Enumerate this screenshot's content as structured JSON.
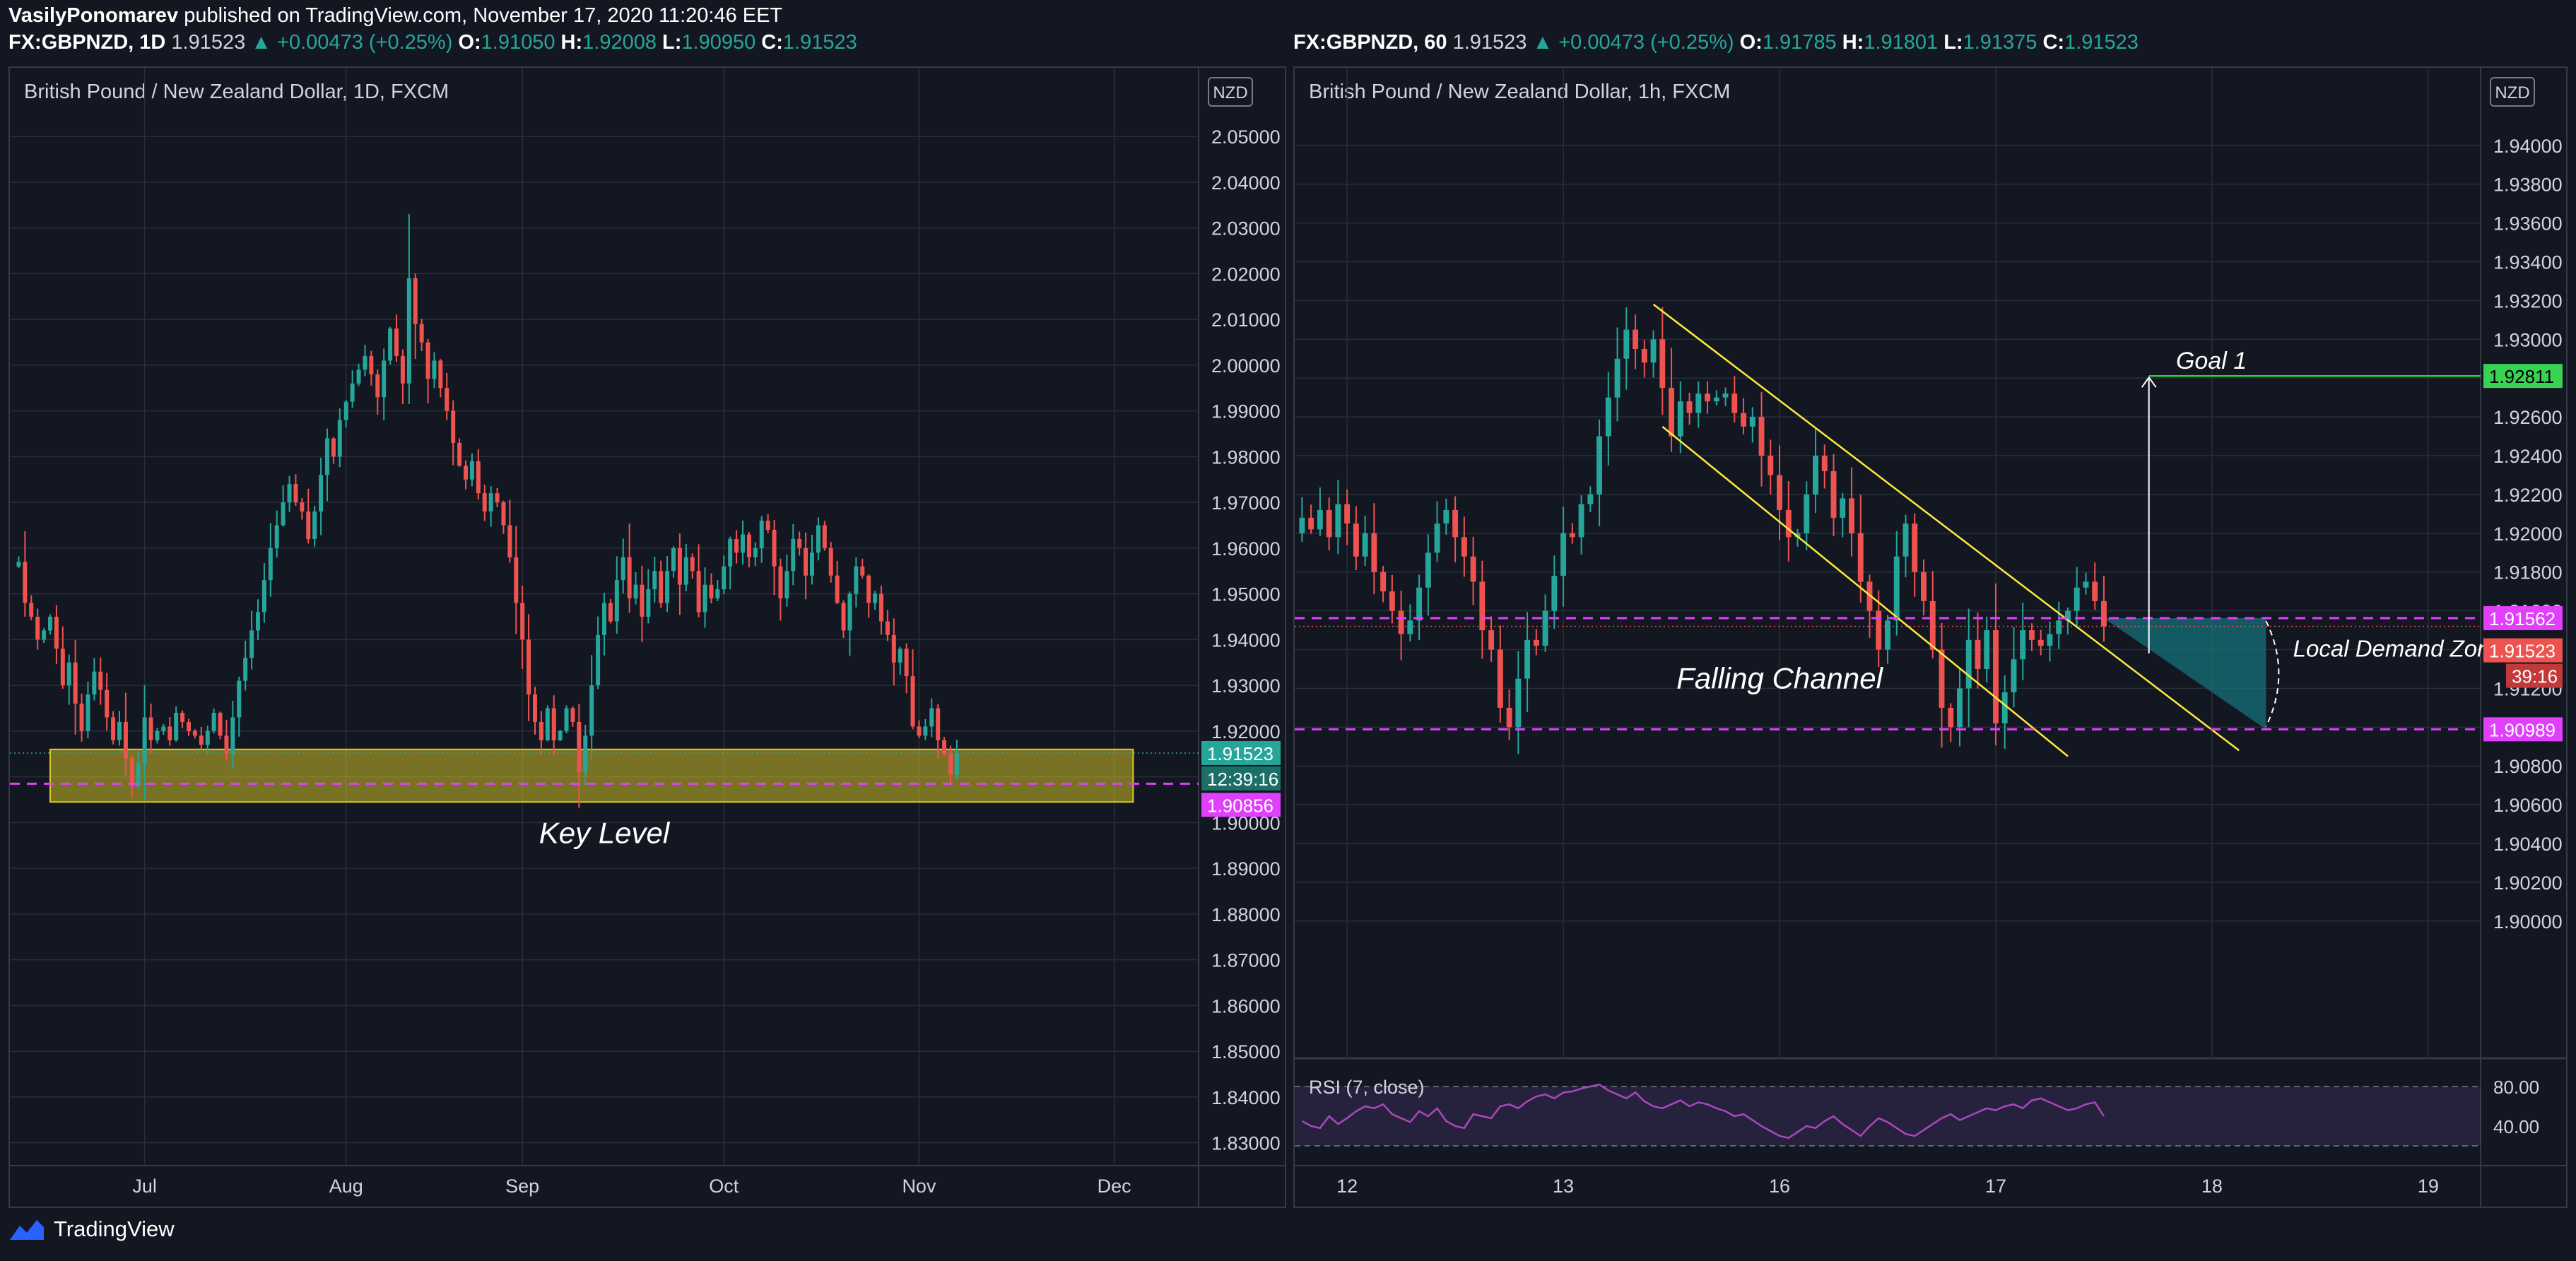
{
  "header": {
    "user": "VasilyPonomarev",
    "published": " published on TradingView.com, November 17, 2020 11:20:46 EET"
  },
  "footer": {
    "brand": "TradingView",
    "logo_icon": "tradingview-logo-icon"
  },
  "colors": {
    "bg": "#131722",
    "grid": "#2a2e39",
    "up": "#26a69a",
    "down": "#ef5350",
    "magenta": "#e040fb",
    "yellow": "#ffeb3b",
    "green_goal": "#2ecc40",
    "text": "#d1d4dc"
  },
  "chart_data": [
    {
      "type": "candlestick",
      "quote": {
        "symbol": "FX:GBPNZD, 1D",
        "last": "1.91523",
        "change": "▲ +0.00473 (+0.25%)",
        "open": "1.91050",
        "high": "1.92008",
        "low": "1.90950",
        "close": "1.91523"
      },
      "title": "British Pound / New Zealand Dollar, 1D, FXCM",
      "currency_badge": "NZD",
      "ylim": [
        1.825,
        2.065
      ],
      "y_ticks": [
        "2.05000",
        "2.04000",
        "2.03000",
        "2.02000",
        "2.01000",
        "2.00000",
        "1.99000",
        "1.98000",
        "1.97000",
        "1.96000",
        "1.95000",
        "1.94000",
        "1.93000",
        "1.92000",
        "1.91000",
        "1.90000",
        "1.89000",
        "1.88000",
        "1.87000",
        "1.86000",
        "1.85000",
        "1.84000",
        "1.83000"
      ],
      "x_ticks": [
        {
          "label": "Jul",
          "i": 20
        },
        {
          "label": "Aug",
          "i": 52
        },
        {
          "label": "Sep",
          "i": 80
        },
        {
          "label": "Oct",
          "i": 112
        },
        {
          "label": "Nov",
          "i": 143
        },
        {
          "label": "Dec",
          "i": 174
        }
      ],
      "x_count": 187,
      "closes": [
        1.957,
        1.948,
        1.945,
        1.94,
        1.942,
        1.945,
        1.938,
        1.93,
        1.935,
        1.926,
        1.92,
        1.928,
        1.933,
        1.929,
        1.923,
        1.918,
        1.922,
        1.914,
        1.908,
        1.913,
        1.923,
        1.918,
        1.92,
        1.921,
        1.918,
        1.924,
        1.922,
        1.92,
        1.919,
        1.917,
        1.92,
        1.924,
        1.919,
        1.915,
        1.923,
        1.931,
        1.936,
        1.942,
        1.946,
        1.953,
        1.96,
        1.965,
        1.97,
        1.974,
        1.97,
        1.968,
        1.962,
        1.968,
        1.976,
        1.984,
        1.98,
        1.988,
        1.992,
        1.996,
        1.999,
        2.002,
        1.998,
        1.993,
        2.001,
        2.008,
        2.002,
        1.996,
        2.019,
        2.009,
        2.005,
        1.997,
        2.001,
        1.995,
        1.99,
        1.983,
        1.978,
        1.975,
        1.979,
        1.972,
        1.968,
        1.972,
        1.97,
        1.965,
        1.958,
        1.948,
        1.94,
        1.928,
        1.922,
        1.918,
        1.925,
        1.918,
        1.92,
        1.925,
        1.922,
        1.911,
        1.919,
        1.93,
        1.941,
        1.948,
        1.944,
        1.953,
        1.958,
        1.949,
        1.952,
        1.945,
        1.951,
        1.955,
        1.948,
        1.955,
        1.96,
        1.952,
        1.958,
        1.955,
        1.946,
        1.952,
        1.949,
        1.951,
        1.956,
        1.962,
        1.959,
        1.963,
        1.958,
        1.96,
        1.966,
        1.964,
        1.956,
        1.949,
        1.955,
        1.962,
        1.96,
        1.954,
        1.959,
        1.965,
        1.96,
        1.954,
        1.948,
        1.942,
        1.95,
        1.956,
        1.954,
        1.948,
        1.95,
        1.944,
        1.941,
        1.935,
        1.938,
        1.932,
        1.921,
        1.919,
        1.921,
        1.925,
        1.918,
        1.915,
        1.9105,
        1.9152
      ],
      "key_zone": [
        1.9045,
        1.916
      ],
      "key_line": 1.9085,
      "price_labels": [
        {
          "text": "1.91523",
          "price": 1.9152,
          "kind": "last"
        },
        {
          "text": "12:39:16",
          "price": 1.9152,
          "kind": "countdown"
        },
        {
          "text": "1.90856",
          "price": 1.9085,
          "kind": "level"
        }
      ],
      "annotations": [
        "Key Level"
      ]
    },
    {
      "type": "candlestick",
      "quote": {
        "symbol": "FX:GBPNZD, 60",
        "last": "1.91523",
        "change": "▲ +0.00473 (+0.25%)",
        "open": "1.91785",
        "high": "1.91801",
        "low": "1.91375",
        "close": "1.91523"
      },
      "title": "British Pound / New Zealand Dollar, 1h, FXCM",
      "currency_badge": "NZD",
      "ylim": [
        1.893,
        1.944
      ],
      "y_ticks": [
        "1.94000",
        "1.93800",
        "1.93600",
        "1.93400",
        "1.93200",
        "1.93000",
        "1.92800",
        "1.92600",
        "1.92400",
        "1.92200",
        "1.92000",
        "1.91800",
        "1.91600",
        "1.91400",
        "1.91200",
        "1.91000",
        "1.90800",
        "1.90600",
        "1.90400",
        "1.90200",
        "1.90000"
      ],
      "x_ticks": [
        {
          "label": "12",
          "i": 5
        },
        {
          "label": "13",
          "i": 29
        },
        {
          "label": "16",
          "i": 53
        },
        {
          "label": "17",
          "i": 77
        },
        {
          "label": "18",
          "i": 101
        },
        {
          "label": "19",
          "i": 125
        }
      ],
      "x_count": 131,
      "closes": [
        1.9208,
        1.9202,
        1.9212,
        1.9198,
        1.9215,
        1.9205,
        1.9188,
        1.92,
        1.918,
        1.917,
        1.916,
        1.9148,
        1.9155,
        1.9172,
        1.919,
        1.9205,
        1.9212,
        1.9198,
        1.9188,
        1.9175,
        1.915,
        1.914,
        1.911,
        1.91,
        1.9125,
        1.9145,
        1.9142,
        1.916,
        1.9178,
        1.92,
        1.9198,
        1.9215,
        1.922,
        1.925,
        1.927,
        1.929,
        1.9305,
        1.9295,
        1.9288,
        1.93,
        1.9275,
        1.925,
        1.9268,
        1.9262,
        1.9272,
        1.9268,
        1.927,
        1.9272,
        1.9262,
        1.9255,
        1.926,
        1.924,
        1.923,
        1.9212,
        1.9198,
        1.92,
        1.922,
        1.924,
        1.9232,
        1.9208,
        1.9218,
        1.92,
        1.9175,
        1.916,
        1.914,
        1.9155,
        1.9188,
        1.9205,
        1.918,
        1.9165,
        1.914,
        1.911,
        1.91,
        1.912,
        1.9145,
        1.913,
        1.915,
        1.9102,
        1.9118,
        1.9135,
        1.915,
        1.9145,
        1.9142,
        1.9148,
        1.9155,
        1.916,
        1.9172,
        1.9175,
        1.9165,
        1.9152
      ],
      "demand_zone": [
        1.90989,
        1.91562
      ],
      "goal_price": 1.92811,
      "channel_upper": [
        [
          0,
          1.9318
        ],
        [
          24,
          1.9262
        ],
        [
          48,
          1.9172
        ],
        [
          63,
          1.909
        ]
      ],
      "channel_lower": [
        [
          0,
          1.9258
        ],
        [
          24,
          1.9192
        ],
        [
          48,
          1.9105
        ],
        [
          63,
          1.9072
        ]
      ],
      "price_labels": [
        {
          "text": "1.92811",
          "price": 1.92811,
          "kind": "goal"
        },
        {
          "text": "1.91562",
          "price": 1.91562,
          "kind": "level"
        },
        {
          "text": "1.91523",
          "price": 1.9152,
          "kind": "last"
        },
        {
          "text": "39:16",
          "price": 1.9152,
          "kind": "countdown"
        },
        {
          "text": "1.90989",
          "price": 1.90989,
          "kind": "level"
        }
      ],
      "annotations": [
        "Goal 1",
        "Falling Channel",
        "Local Demand Zone"
      ],
      "rsi": {
        "title": "RSI (7, close)",
        "ylim": [
          0,
          100
        ],
        "y_ticks": [
          "80.00",
          "40.00"
        ],
        "bands": [
          80,
          20
        ],
        "values": [
          45,
          40,
          38,
          50,
          42,
          48,
          55,
          60,
          58,
          62,
          52,
          48,
          44,
          55,
          50,
          58,
          45,
          40,
          38,
          52,
          50,
          48,
          60,
          62,
          58,
          65,
          70,
          72,
          68,
          74,
          75,
          78,
          80,
          82,
          76,
          72,
          68,
          74,
          65,
          60,
          58,
          62,
          66,
          60,
          64,
          62,
          58,
          55,
          50,
          52,
          46,
          40,
          35,
          30,
          28,
          34,
          40,
          38,
          45,
          50,
          42,
          36,
          30,
          40,
          48,
          44,
          38,
          32,
          30,
          36,
          42,
          48,
          52,
          46,
          50,
          54,
          58,
          56,
          60,
          62,
          58,
          66,
          68,
          64,
          60,
          56,
          58,
          62,
          64,
          50
        ]
      }
    }
  ]
}
